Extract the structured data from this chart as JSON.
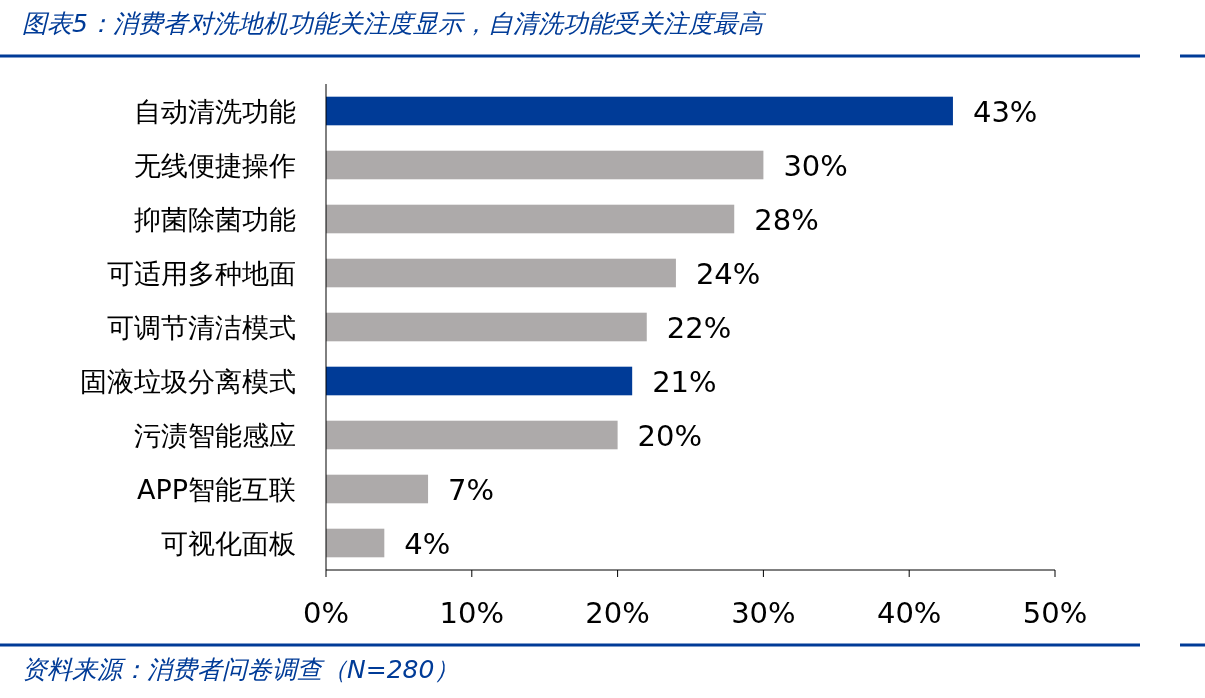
{
  "chart_data": {
    "type": "bar",
    "orientation": "horizontal",
    "title": "图表5：消费者对洗地机功能关注度显示，自清洗功能受关注度最高",
    "categories": [
      "自动清洗功能",
      "无线便捷操作",
      "抑菌除菌功能",
      "可适用多种地面",
      "可调节清洁模式",
      "固液垃圾分离模式",
      "污渍智能感应",
      "APP智能互联",
      "可视化面板"
    ],
    "values": [
      43,
      30,
      28,
      24,
      22,
      21,
      20,
      7,
      4
    ],
    "colors": [
      "#003b97",
      "#adaaaa",
      "#adaaaa",
      "#adaaaa",
      "#adaaaa",
      "#003b97",
      "#adaaaa",
      "#adaaaa",
      "#adaaaa"
    ],
    "value_labels": [
      "43%",
      "30%",
      "28%",
      "24%",
      "22%",
      "21%",
      "20%",
      "7%",
      "4%"
    ],
    "xlim": [
      0,
      50
    ],
    "xticks": [
      {
        "value": 0,
        "label": "0%"
      },
      {
        "value": 10,
        "label": "10%"
      },
      {
        "value": 20,
        "label": "20%"
      },
      {
        "value": 30,
        "label": "30%"
      },
      {
        "value": 40,
        "label": "40%"
      },
      {
        "value": 50,
        "label": "50%"
      }
    ],
    "annotations": [
      "资料来源：消费者问卷调查（N=280）"
    ]
  }
}
